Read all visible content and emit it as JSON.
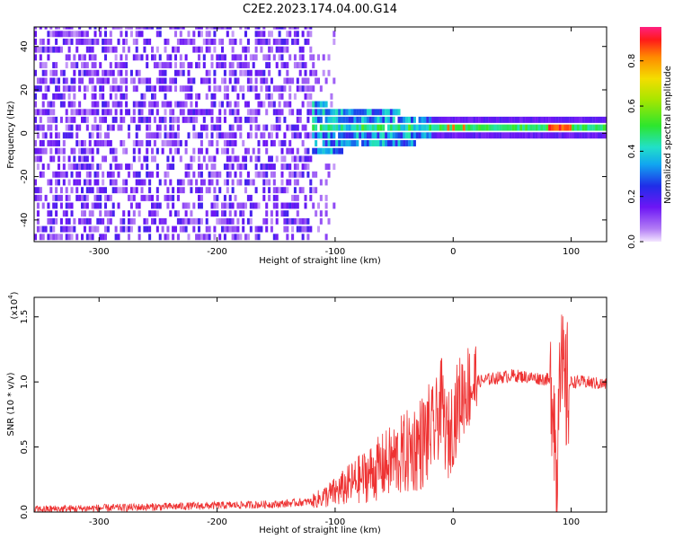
{
  "title": "C2E2.2023.174.04.00.G14",
  "chart_data": [
    {
      "type": "heatmap",
      "panel": "spectrogram",
      "xlabel": "Height of straight line (km)",
      "ylabel": "Frequency (Hz)",
      "xlim": [
        -355,
        130
      ],
      "ylim": [
        -50,
        49
      ],
      "xticks": [
        -300,
        -200,
        -100,
        0,
        100
      ],
      "yticks": [
        -40,
        -20,
        0,
        20,
        40
      ],
      "colorbar": {
        "label": "Normalized spectral amplitude",
        "range": [
          0.0,
          0.95
        ],
        "ticks": [
          0.0,
          0.2,
          0.4,
          0.6,
          0.8
        ],
        "colormap": "rainbow (purple-blue-cyan-green-yellow-red-pink)"
      },
      "description_regions": [
        {
          "x_range": [
            -355,
            -120
          ],
          "f_range": [
            -50,
            49
          ],
          "amplitude": 0.05
        },
        {
          "x_range": [
            -120,
            -20
          ],
          "f_range": [
            -10,
            10
          ],
          "amplitude": 0.35
        },
        {
          "x_range": [
            -20,
            130
          ],
          "f_range": [
            -4,
            4
          ],
          "amplitude": 0.5
        },
        {
          "x_range": [
            80,
            100
          ],
          "f_range": [
            -2,
            2
          ],
          "amplitude": 0.85
        }
      ]
    },
    {
      "type": "line",
      "panel": "snr",
      "xlabel": "Height of straight line (km)",
      "ylabel": "SNR (10 * v/v)",
      "y_scale_label": "(x10",
      "y_scale_exp": "4",
      "y_scale_close": ")",
      "xlim": [
        -355,
        130
      ],
      "ylim": [
        0.0,
        1.65
      ],
      "xticks": [
        -300,
        -200,
        -100,
        0,
        100
      ],
      "yticks": [
        0.0,
        0.5,
        1.0,
        1.5
      ],
      "series": [
        {
          "color": "#ee3333",
          "x": [
            -355,
            -300,
            -250,
            -200,
            -150,
            -120,
            -100,
            -80,
            -60,
            -40,
            -25,
            -15,
            -10,
            -5,
            0,
            5,
            10,
            20,
            30,
            50,
            70,
            80,
            85,
            88,
            90,
            92,
            95,
            100,
            110,
            130
          ],
          "y": [
            0.02,
            0.03,
            0.04,
            0.05,
            0.06,
            0.08,
            0.15,
            0.25,
            0.35,
            0.45,
            0.55,
            0.65,
            0.85,
            0.55,
            0.7,
            0.85,
            0.95,
            1.0,
            1.02,
            1.05,
            1.03,
            1.02,
            0.95,
            0.1,
            1.5,
            1.0,
            0.9,
            1.0,
            1.0,
            0.98
          ]
        }
      ]
    }
  ]
}
